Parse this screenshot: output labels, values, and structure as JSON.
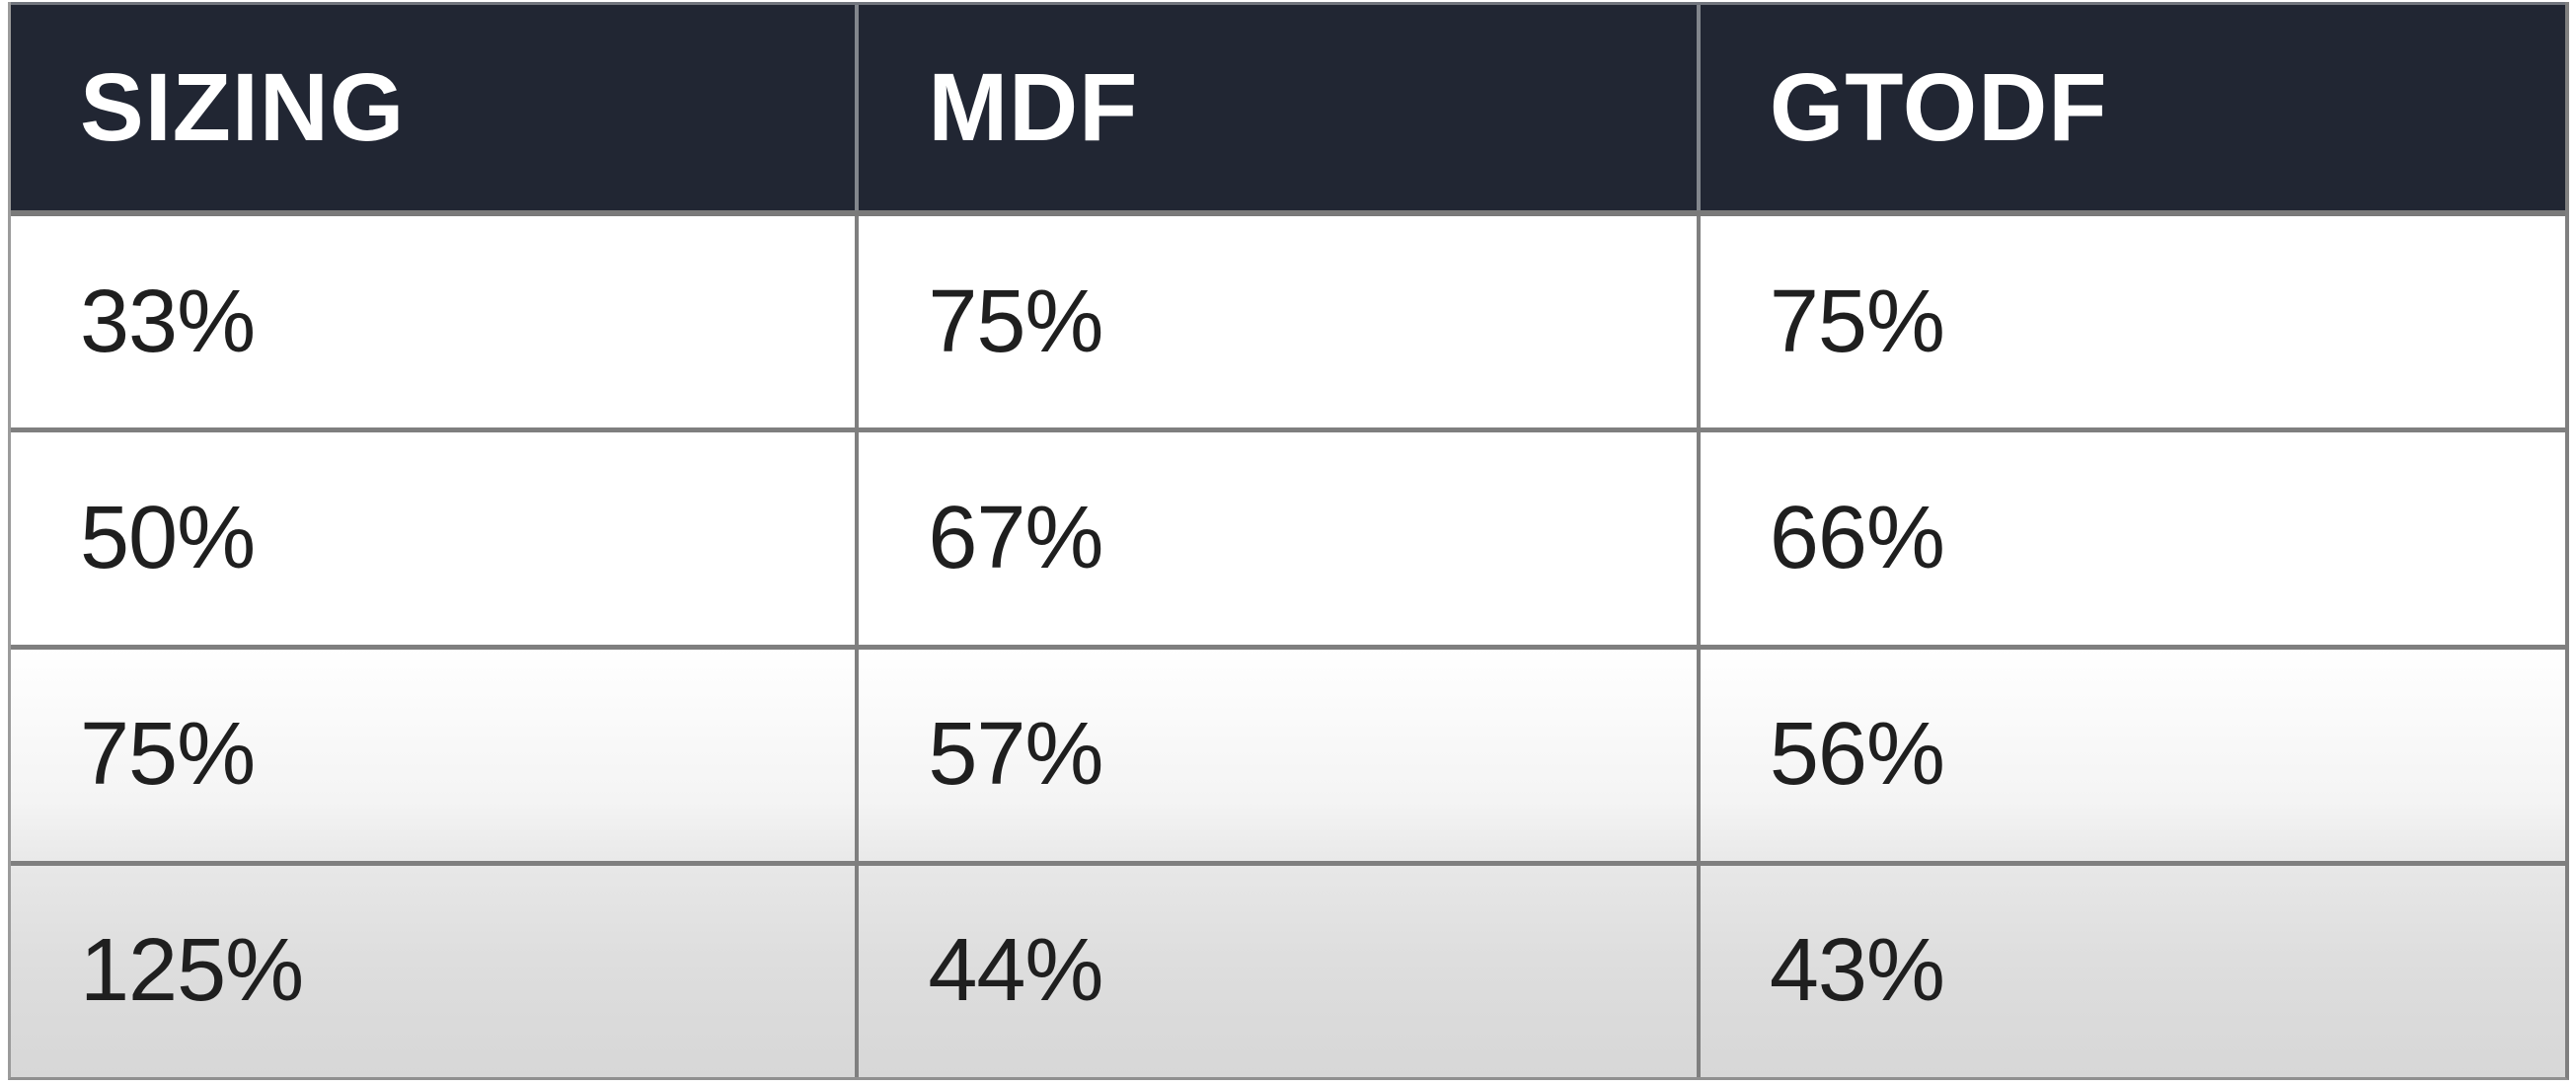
{
  "table": {
    "columns": [
      {
        "label": "SIZING"
      },
      {
        "label": "MDF"
      },
      {
        "label": "GTODF"
      }
    ],
    "rows": [
      {
        "cells": [
          "33%",
          "75%",
          "75%"
        ]
      },
      {
        "cells": [
          "50%",
          "67%",
          "66%"
        ]
      },
      {
        "cells": [
          "75%",
          "57%",
          "56%"
        ]
      },
      {
        "cells": [
          "125%",
          "44%",
          "43%"
        ]
      }
    ]
  },
  "colors": {
    "header_bg": "#212633",
    "header_text": "#ffffff",
    "grid_line": "#7f7f7f",
    "body_text": "#1f1f1f",
    "fade_end": "#d7d7d7"
  },
  "chart_data": {
    "type": "table",
    "columns": [
      "SIZING",
      "MDF",
      "GTODF"
    ],
    "rows": [
      [
        "33%",
        "75%",
        "75%"
      ],
      [
        "50%",
        "67%",
        "66%"
      ],
      [
        "75%",
        "57%",
        "56%"
      ],
      [
        "125%",
        "44%",
        "43%"
      ]
    ]
  }
}
